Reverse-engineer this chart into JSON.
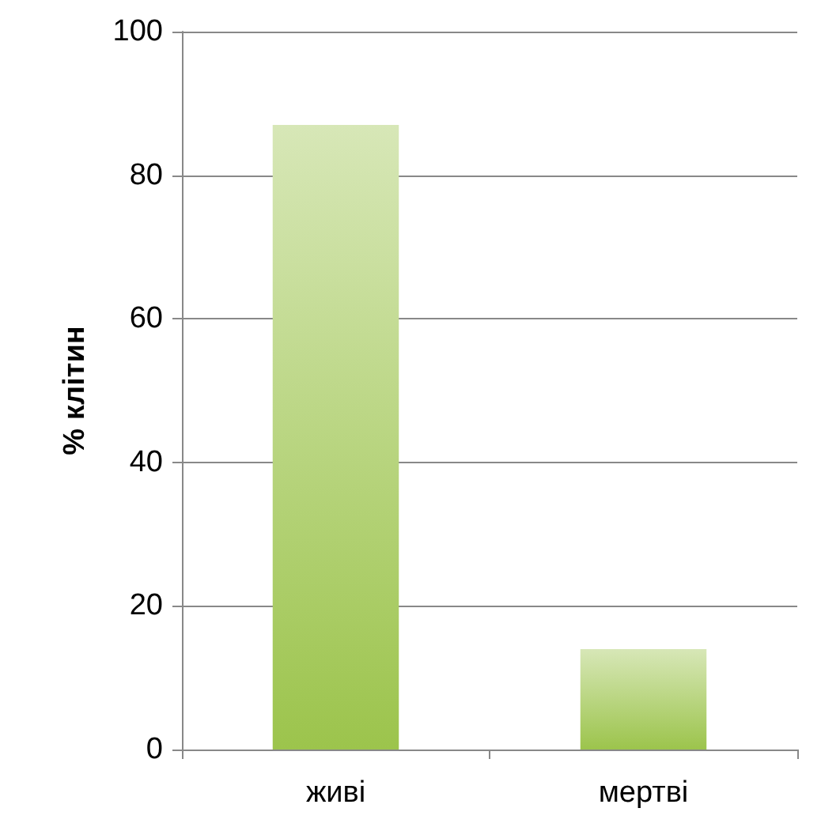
{
  "chart_data": {
    "type": "bar",
    "ylabel": "% клітин",
    "categories": [
      "живі",
      "мертві"
    ],
    "values": [
      87,
      14
    ],
    "color": "#9cc44c",
    "ylim": [
      0,
      100
    ],
    "yticks": [
      0,
      20,
      40,
      60,
      80,
      100
    ],
    "grid": "y"
  }
}
